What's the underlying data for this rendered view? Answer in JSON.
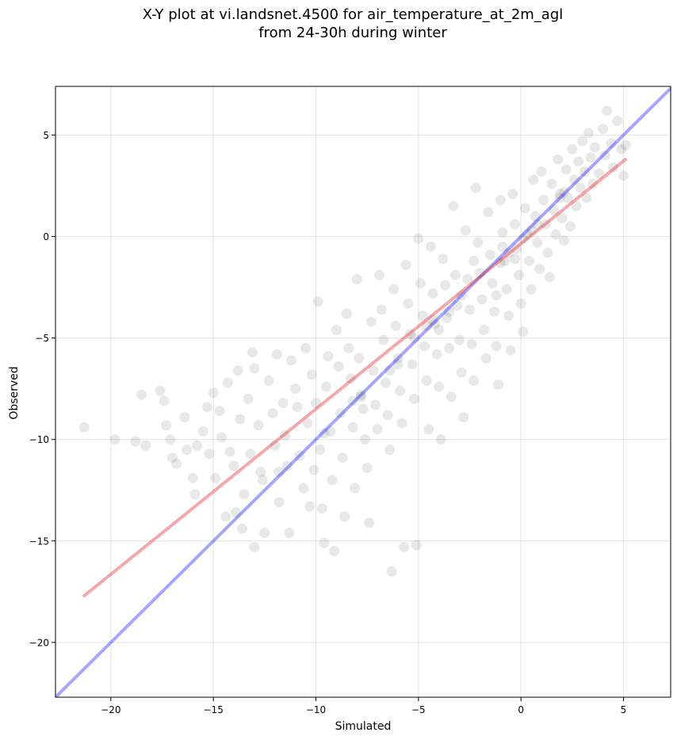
{
  "chart_data": {
    "type": "scatter",
    "title_lines": [
      "X-Y plot at vi.landsnet.4500 for air_temperature_at_2m_agl",
      "from 24-30h during winter"
    ],
    "xlabel": "Simulated",
    "ylabel": "Observed",
    "xlim": [
      -22.7,
      7.3
    ],
    "ylim": [
      -22.7,
      7.4
    ],
    "xticks": [
      -20,
      -15,
      -10,
      -5,
      0,
      5
    ],
    "yticks": [
      -20,
      -15,
      -10,
      -5,
      0,
      5
    ],
    "xtick_labels": [
      "−20",
      "−15",
      "−10",
      "−5",
      "0",
      "5"
    ],
    "ytick_labels": [
      "−20",
      "−15",
      "−10",
      "−5",
      "0",
      "5"
    ],
    "grid": true,
    "point_color": "#000000",
    "point_alpha": 0.09,
    "reference_lines": [
      {
        "name": "1:1 line",
        "color": "#0000ff",
        "alpha": 0.35,
        "x": [
          -22.7,
          7.3
        ],
        "y": [
          -22.7,
          7.3
        ]
      },
      {
        "name": "fit",
        "color": "#e31a1c",
        "alpha": 0.38,
        "x": [
          -21.3,
          5.1
        ],
        "y": [
          -17.7,
          3.8
        ]
      }
    ],
    "points": [
      [
        -21.3,
        -9.4
      ],
      [
        -19.8,
        -10.0
      ],
      [
        -18.8,
        -10.1
      ],
      [
        -18.5,
        -7.8
      ],
      [
        -18.3,
        -10.3
      ],
      [
        -17.6,
        -7.6
      ],
      [
        -17.4,
        -8.1
      ],
      [
        -17.3,
        -9.3
      ],
      [
        -17.1,
        -10.0
      ],
      [
        -17.0,
        -10.9
      ],
      [
        -16.8,
        -11.2
      ],
      [
        -16.4,
        -8.9
      ],
      [
        -16.3,
        -10.5
      ],
      [
        -16.0,
        -11.9
      ],
      [
        -15.8,
        -10.3
      ],
      [
        -15.9,
        -12.7
      ],
      [
        -15.5,
        -9.6
      ],
      [
        -15.3,
        -8.4
      ],
      [
        -15.0,
        -7.7
      ],
      [
        -15.2,
        -10.7
      ],
      [
        -14.9,
        -11.9
      ],
      [
        -14.7,
        -8.6
      ],
      [
        -14.6,
        -9.9
      ],
      [
        -14.4,
        -13.8
      ],
      [
        -14.3,
        -7.2
      ],
      [
        -14.2,
        -10.6
      ],
      [
        -14.0,
        -11.3
      ],
      [
        -13.9,
        -13.6
      ],
      [
        -13.8,
        -6.6
      ],
      [
        -13.7,
        -9.0
      ],
      [
        -13.5,
        -12.7
      ],
      [
        -13.6,
        -14.4
      ],
      [
        -13.3,
        -8.0
      ],
      [
        -13.2,
        -10.7
      ],
      [
        -13.1,
        -5.7
      ],
      [
        -13.0,
        -6.5
      ],
      [
        -13.0,
        -15.3
      ],
      [
        -12.8,
        -9.3
      ],
      [
        -12.7,
        -11.6
      ],
      [
        -12.6,
        -12.0
      ],
      [
        -12.5,
        -14.6
      ],
      [
        -12.3,
        -7.1
      ],
      [
        -12.1,
        -8.7
      ],
      [
        -12.0,
        -10.3
      ],
      [
        -11.9,
        -5.8
      ],
      [
        -11.8,
        -13.1
      ],
      [
        -11.6,
        -8.2
      ],
      [
        -11.5,
        -9.8
      ],
      [
        -11.4,
        -11.3
      ],
      [
        -11.3,
        -14.6
      ],
      [
        -11.2,
        -6.1
      ],
      [
        -11.0,
        -7.5
      ],
      [
        -10.9,
        -8.4
      ],
      [
        -10.8,
        -10.8
      ],
      [
        -10.6,
        -12.4
      ],
      [
        -10.5,
        -5.5
      ],
      [
        -10.4,
        -9.2
      ],
      [
        -10.3,
        -13.3
      ],
      [
        -10.2,
        -6.8
      ],
      [
        -10.0,
        -8.2
      ],
      [
        -10.1,
        -11.5
      ],
      [
        -9.9,
        -3.2
      ],
      [
        -9.8,
        -10.5
      ],
      [
        -9.7,
        -13.4
      ],
      [
        -9.6,
        -15.1
      ],
      [
        -9.5,
        -7.4
      ],
      [
        -9.4,
        -5.9
      ],
      [
        -9.3,
        -9.6
      ],
      [
        -9.2,
        -12.0
      ],
      [
        -9.1,
        -15.5
      ],
      [
        -9.0,
        -4.6
      ],
      [
        -8.9,
        -6.4
      ],
      [
        -8.8,
        -8.7
      ],
      [
        -8.7,
        -10.9
      ],
      [
        -8.6,
        -13.8
      ],
      [
        -8.5,
        -3.8
      ],
      [
        -8.4,
        -5.5
      ],
      [
        -8.3,
        -7.0
      ],
      [
        -8.2,
        -9.4
      ],
      [
        -8.1,
        -12.4
      ],
      [
        -8.0,
        -2.1
      ],
      [
        -7.9,
        -6.0
      ],
      [
        -7.8,
        -7.8
      ],
      [
        -7.7,
        -8.5
      ],
      [
        -7.6,
        -10.0
      ],
      [
        -7.5,
        -11.4
      ],
      [
        -7.4,
        -14.1
      ],
      [
        -7.3,
        -4.2
      ],
      [
        -7.2,
        -6.6
      ],
      [
        -7.1,
        -8.3
      ],
      [
        -7.0,
        -9.5
      ],
      [
        -6.9,
        -1.9
      ],
      [
        -6.8,
        -3.6
      ],
      [
        -6.7,
        -5.1
      ],
      [
        -6.6,
        -7.2
      ],
      [
        -6.5,
        -8.8
      ],
      [
        -6.4,
        -10.5
      ],
      [
        -6.3,
        -16.5
      ],
      [
        -6.2,
        -2.6
      ],
      [
        -6.1,
        -4.4
      ],
      [
        -6.0,
        -6.0
      ],
      [
        -5.9,
        -7.6
      ],
      [
        -5.8,
        -9.2
      ],
      [
        -5.7,
        -15.3
      ],
      [
        -5.6,
        -1.4
      ],
      [
        -5.5,
        -3.3
      ],
      [
        -5.4,
        -4.8
      ],
      [
        -5.3,
        -6.3
      ],
      [
        -5.2,
        -8.0
      ],
      [
        -5.1,
        -15.2
      ],
      [
        -5.0,
        -0.1
      ],
      [
        -4.9,
        -2.3
      ],
      [
        -4.8,
        -3.9
      ],
      [
        -4.7,
        -5.4
      ],
      [
        -4.6,
        -7.1
      ],
      [
        -4.5,
        -9.5
      ],
      [
        -4.4,
        -0.5
      ],
      [
        -4.3,
        -2.8
      ],
      [
        -4.2,
        -4.3
      ],
      [
        -4.1,
        -5.8
      ],
      [
        -4.0,
        -7.4
      ],
      [
        -3.9,
        -10.0
      ],
      [
        -3.8,
        -1.1
      ],
      [
        -3.7,
        -2.4
      ],
      [
        -3.6,
        -4.0
      ],
      [
        -3.5,
        -5.5
      ],
      [
        -3.4,
        -7.9
      ],
      [
        -3.3,
        1.5
      ],
      [
        -3.2,
        -1.9
      ],
      [
        -3.1,
        -3.4
      ],
      [
        -3.0,
        -5.1
      ],
      [
        -2.9,
        -6.7
      ],
      [
        -2.8,
        -8.9
      ],
      [
        -2.7,
        0.3
      ],
      [
        -2.6,
        -2.1
      ],
      [
        -2.5,
        -3.6
      ],
      [
        -2.4,
        -5.3
      ],
      [
        -2.3,
        -7.1
      ],
      [
        -2.2,
        2.4
      ],
      [
        -2.1,
        -0.3
      ],
      [
        -2.0,
        -1.8
      ],
      [
        -1.9,
        -3.1
      ],
      [
        -1.8,
        -4.6
      ],
      [
        -1.7,
        -6.0
      ],
      [
        -1.6,
        1.2
      ],
      [
        -1.5,
        -0.9
      ],
      [
        -1.4,
        -2.3
      ],
      [
        -1.3,
        -3.7
      ],
      [
        -1.2,
        -5.4
      ],
      [
        -1.1,
        -7.3
      ],
      [
        -1.0,
        1.8
      ],
      [
        -0.9,
        0.2
      ],
      [
        -0.8,
        -1.2
      ],
      [
        -0.7,
        -2.6
      ],
      [
        -0.6,
        -3.9
      ],
      [
        -0.5,
        -5.6
      ],
      [
        -0.4,
        2.1
      ],
      [
        -0.3,
        0.6
      ],
      [
        -0.2,
        -0.6
      ],
      [
        -0.1,
        -1.9
      ],
      [
        0.0,
        -3.3
      ],
      [
        0.1,
        -4.7
      ],
      [
        0.2,
        1.4
      ],
      [
        0.3,
        0.1
      ],
      [
        0.4,
        -1.2
      ],
      [
        0.5,
        -2.6
      ],
      [
        0.6,
        2.8
      ],
      [
        0.7,
        1.0
      ],
      [
        0.8,
        -0.3
      ],
      [
        0.9,
        -1.6
      ],
      [
        1.0,
        3.2
      ],
      [
        1.1,
        1.8
      ],
      [
        1.2,
        0.6
      ],
      [
        1.3,
        -0.8
      ],
      [
        1.4,
        -2.0
      ],
      [
        1.5,
        2.6
      ],
      [
        1.6,
        1.3
      ],
      [
        1.7,
        0.1
      ],
      [
        1.8,
        3.8
      ],
      [
        1.9,
        2.1
      ],
      [
        2.0,
        0.9
      ],
      [
        2.1,
        -0.2
      ],
      [
        2.2,
        3.3
      ],
      [
        2.3,
        1.9
      ],
      [
        2.4,
        0.5
      ],
      [
        2.5,
        4.3
      ],
      [
        2.6,
        2.8
      ],
      [
        2.7,
        1.5
      ],
      [
        2.8,
        3.7
      ],
      [
        2.9,
        2.4
      ],
      [
        3.0,
        4.7
      ],
      [
        3.1,
        3.2
      ],
      [
        3.2,
        1.9
      ],
      [
        3.3,
        5.1
      ],
      [
        3.4,
        3.9
      ],
      [
        3.5,
        2.6
      ],
      [
        3.6,
        4.4
      ],
      [
        3.8,
        3.1
      ],
      [
        4.0,
        5.3
      ],
      [
        4.1,
        4.0
      ],
      [
        4.2,
        6.2
      ],
      [
        4.4,
        4.6
      ],
      [
        4.5,
        3.4
      ],
      [
        4.7,
        5.7
      ],
      [
        4.9,
        4.3
      ],
      [
        5.0,
        3.0
      ],
      [
        5.1,
        4.5
      ],
      [
        -4.6,
        -4.4
      ],
      [
        -4.3,
        -4.1
      ],
      [
        -4.0,
        -4.6
      ],
      [
        -6.4,
        -6.6
      ],
      [
        -6.0,
        -6.3
      ],
      [
        -7.8,
        -7.9
      ],
      [
        -8.2,
        -8.1
      ],
      [
        -1.0,
        -1.3
      ],
      [
        -0.6,
        -0.8
      ],
      [
        0.5,
        0.3
      ],
      [
        0.8,
        0.6
      ],
      [
        1.9,
        1.9
      ],
      [
        2.1,
        2.2
      ],
      [
        -3.5,
        -3.7
      ],
      [
        -2.9,
        -2.9
      ],
      [
        -0.9,
        -0.5
      ],
      [
        0.1,
        -0.1
      ],
      [
        -5.2,
        -5.0
      ],
      [
        -9.6,
        -9.7
      ],
      [
        -11.8,
        -11.6
      ],
      [
        -2.3,
        -1.2
      ],
      [
        -1.2,
        -2.9
      ],
      [
        -0.3,
        -1.1
      ]
    ]
  }
}
